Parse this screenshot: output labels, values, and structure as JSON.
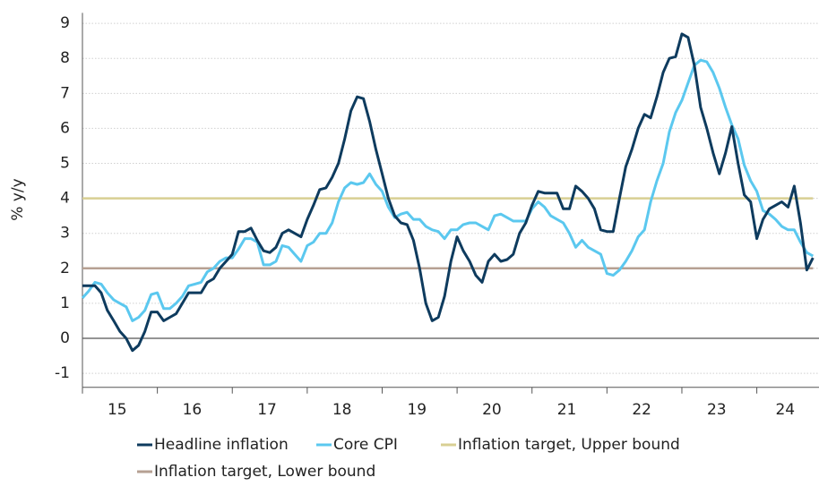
{
  "chart_data": {
    "type": "line",
    "y_label": "% y/y",
    "xlim": [
      15,
      24.83
    ],
    "xticks": [
      15,
      16,
      17,
      18,
      19,
      20,
      21,
      22,
      23,
      24
    ],
    "ylim": [
      -1.4,
      9.3
    ],
    "yticks": [
      -1,
      0,
      1,
      2,
      3,
      4,
      5,
      6,
      7,
      8,
      9
    ],
    "grid": true,
    "legend": "bottom",
    "x": [
      15,
      15.083,
      15.167,
      15.25,
      15.333,
      15.417,
      15.5,
      15.583,
      15.667,
      15.75,
      15.833,
      15.917,
      16,
      16.083,
      16.167,
      16.25,
      16.333,
      16.417,
      16.5,
      16.583,
      16.667,
      16.75,
      16.833,
      16.917,
      17,
      17.083,
      17.167,
      17.25,
      17.333,
      17.417,
      17.5,
      17.583,
      17.667,
      17.75,
      17.833,
      17.917,
      18,
      18.083,
      18.167,
      18.25,
      18.333,
      18.417,
      18.5,
      18.583,
      18.667,
      18.75,
      18.833,
      18.917,
      19,
      19.083,
      19.167,
      19.25,
      19.333,
      19.417,
      19.5,
      19.583,
      19.667,
      19.75,
      19.833,
      19.917,
      20,
      20.083,
      20.167,
      20.25,
      20.333,
      20.417,
      20.5,
      20.583,
      20.667,
      20.75,
      20.833,
      20.917,
      21,
      21.083,
      21.167,
      21.25,
      21.333,
      21.417,
      21.5,
      21.583,
      21.667,
      21.75,
      21.833,
      21.917,
      22,
      22.083,
      22.167,
      22.25,
      22.333,
      22.417,
      22.5,
      22.583,
      22.667,
      22.75,
      22.833,
      22.917,
      23,
      23.083,
      23.167,
      23.25,
      23.333,
      23.417,
      23.5,
      23.583,
      23.667,
      23.75,
      23.833,
      23.917,
      24,
      24.083,
      24.167,
      24.25,
      24.333,
      24.417,
      24.5,
      24.583,
      24.667,
      24.75
    ],
    "series": [
      {
        "name": "Headline inflation",
        "color": "#0e3b5e",
        "values": [
          1.5,
          1.5,
          1.5,
          1.3,
          0.8,
          0.5,
          0.2,
          0.0,
          -0.35,
          -0.2,
          0.2,
          0.75,
          0.75,
          0.5,
          0.6,
          0.7,
          1.0,
          1.3,
          1.3,
          1.3,
          1.6,
          1.7,
          2.0,
          2.2,
          2.4,
          3.05,
          3.05,
          3.15,
          2.8,
          2.5,
          2.45,
          2.6,
          3.0,
          3.1,
          3.0,
          2.9,
          3.4,
          3.8,
          4.25,
          4.3,
          4.6,
          5.0,
          5.7,
          6.5,
          6.9,
          6.85,
          6.2,
          5.4,
          4.7,
          4.0,
          3.5,
          3.3,
          3.25,
          2.8,
          2.0,
          1.0,
          0.5,
          0.6,
          1.2,
          2.2,
          2.9,
          2.5,
          2.2,
          1.8,
          1.6,
          2.2,
          2.4,
          2.2,
          2.25,
          2.4,
          3.0,
          3.3,
          3.8,
          4.2,
          4.15,
          4.15,
          4.15,
          3.7,
          3.7,
          4.35,
          4.2,
          4.0,
          3.7,
          3.1,
          3.05,
          3.05,
          4.0,
          4.9,
          5.4,
          6.0,
          6.4,
          6.3,
          6.9,
          7.6,
          8.0,
          8.05,
          8.7,
          8.6,
          7.8,
          6.6,
          6.0,
          5.3,
          4.7,
          5.3,
          6.05,
          5.0,
          4.1,
          3.9,
          2.85,
          3.4,
          3.7,
          3.8,
          3.9,
          3.75,
          4.35,
          3.3,
          1.95,
          2.3
        ]
      },
      {
        "name": "Core CPI",
        "color": "#5bc8ef",
        "values": [
          1.15,
          1.35,
          1.6,
          1.55,
          1.3,
          1.1,
          1.0,
          0.9,
          0.5,
          0.6,
          0.8,
          1.25,
          1.3,
          0.85,
          0.85,
          1.0,
          1.2,
          1.5,
          1.55,
          1.6,
          1.9,
          2.0,
          2.2,
          2.3,
          2.3,
          2.55,
          2.85,
          2.85,
          2.75,
          2.1,
          2.1,
          2.2,
          2.65,
          2.6,
          2.4,
          2.2,
          2.65,
          2.75,
          3.0,
          3.0,
          3.3,
          3.9,
          4.3,
          4.45,
          4.4,
          4.45,
          4.7,
          4.4,
          4.2,
          3.75,
          3.45,
          3.55,
          3.6,
          3.4,
          3.4,
          3.2,
          3.1,
          3.05,
          2.85,
          3.1,
          3.1,
          3.25,
          3.3,
          3.3,
          3.2,
          3.1,
          3.5,
          3.55,
          3.45,
          3.35,
          3.35,
          3.35,
          3.7,
          3.9,
          3.75,
          3.5,
          3.4,
          3.3,
          3.0,
          2.6,
          2.8,
          2.6,
          2.5,
          2.4,
          1.85,
          1.8,
          1.95,
          2.2,
          2.5,
          2.9,
          3.1,
          3.9,
          4.5,
          5.0,
          5.9,
          6.45,
          6.8,
          7.3,
          7.8,
          7.95,
          7.9,
          7.6,
          7.15,
          6.6,
          6.1,
          5.7,
          4.95,
          4.5,
          4.2,
          3.65,
          3.55,
          3.4,
          3.2,
          3.1,
          3.1,
          2.75,
          2.45,
          2.35
        ]
      },
      {
        "name": "Inflation target, Upper bound",
        "color": "#d8cf93",
        "values": [
          4,
          4,
          4,
          4,
          4,
          4,
          4,
          4,
          4,
          4,
          4,
          4,
          4,
          4,
          4,
          4,
          4,
          4,
          4,
          4,
          4,
          4,
          4,
          4,
          4,
          4,
          4,
          4,
          4,
          4,
          4,
          4,
          4,
          4,
          4,
          4,
          4,
          4,
          4,
          4,
          4,
          4,
          4,
          4,
          4,
          4,
          4,
          4,
          4,
          4,
          4,
          4,
          4,
          4,
          4,
          4,
          4,
          4,
          4,
          4,
          4,
          4,
          4,
          4,
          4,
          4,
          4,
          4,
          4,
          4,
          4,
          4,
          4,
          4,
          4,
          4,
          4,
          4,
          4,
          4,
          4,
          4,
          4,
          4,
          4,
          4,
          4,
          4,
          4,
          4,
          4,
          4,
          4,
          4,
          4,
          4,
          4,
          4,
          4,
          4,
          4,
          4,
          4,
          4,
          4,
          4,
          4,
          4,
          4,
          4,
          4,
          4,
          4,
          4,
          4,
          4,
          4,
          4
        ]
      },
      {
        "name": "Inflation target, Lower bound",
        "color": "#b6a093",
        "values": [
          2,
          2,
          2,
          2,
          2,
          2,
          2,
          2,
          2,
          2,
          2,
          2,
          2,
          2,
          2,
          2,
          2,
          2,
          2,
          2,
          2,
          2,
          2,
          2,
          2,
          2,
          2,
          2,
          2,
          2,
          2,
          2,
          2,
          2,
          2,
          2,
          2,
          2,
          2,
          2,
          2,
          2,
          2,
          2,
          2,
          2,
          2,
          2,
          2,
          2,
          2,
          2,
          2,
          2,
          2,
          2,
          2,
          2,
          2,
          2,
          2,
          2,
          2,
          2,
          2,
          2,
          2,
          2,
          2,
          2,
          2,
          2,
          2,
          2,
          2,
          2,
          2,
          2,
          2,
          2,
          2,
          2,
          2,
          2,
          2,
          2,
          2,
          2,
          2,
          2,
          2,
          2,
          2,
          2,
          2,
          2,
          2,
          2,
          2,
          2,
          2,
          2,
          2,
          2,
          2,
          2,
          2,
          2,
          2,
          2,
          2,
          2,
          2,
          2,
          2,
          2,
          2,
          2
        ]
      }
    ]
  }
}
